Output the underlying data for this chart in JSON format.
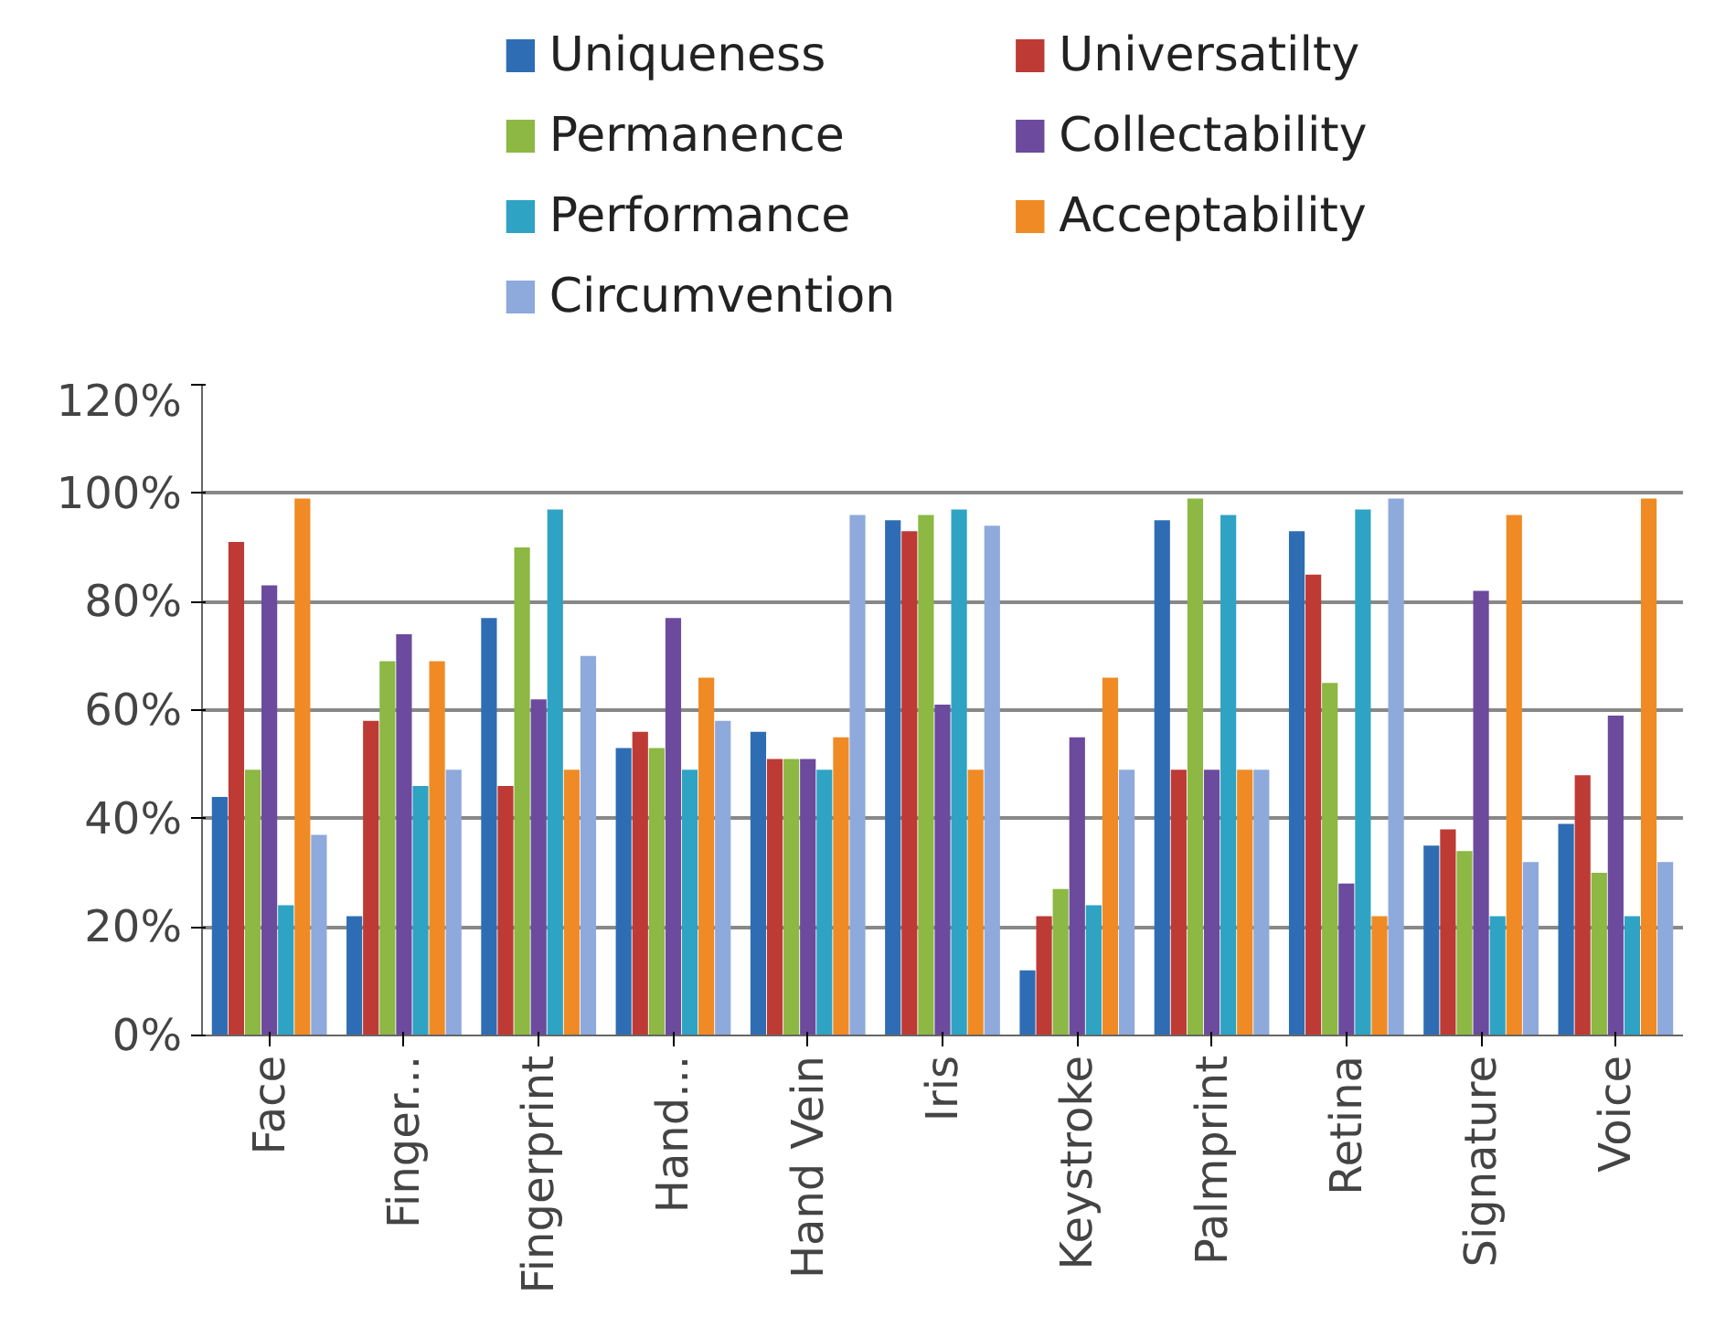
{
  "chart_data": {
    "type": "bar",
    "categories": [
      "Face",
      "Finger...",
      "Fingerprint",
      "Hand...",
      "Hand Vein",
      "Iris",
      "Keystroke",
      "Palmprint",
      "Retina",
      "Signature",
      "Voice"
    ],
    "series": [
      {
        "name": "Uniqueness",
        "color": "#2e6db4",
        "values": [
          44,
          22,
          77,
          53,
          56,
          95,
          12,
          95,
          93,
          35,
          39
        ]
      },
      {
        "name": "Universatilty",
        "color": "#be3a34",
        "values": [
          91,
          58,
          46,
          56,
          51,
          93,
          22,
          49,
          85,
          38,
          48
        ]
      },
      {
        "name": "Permanence",
        "color": "#8cb843",
        "values": [
          49,
          69,
          90,
          53,
          51,
          96,
          27,
          99,
          65,
          34,
          30
        ]
      },
      {
        "name": "Collectability",
        "color": "#6c4a9e",
        "values": [
          83,
          74,
          62,
          77,
          51,
          61,
          55,
          49,
          28,
          82,
          59
        ]
      },
      {
        "name": "Performance",
        "color": "#2ea3c3",
        "values": [
          24,
          46,
          97,
          49,
          49,
          97,
          24,
          96,
          97,
          22,
          22
        ]
      },
      {
        "name": "Acceptability",
        "color": "#f08a24",
        "values": [
          99,
          69,
          49,
          66,
          55,
          49,
          66,
          49,
          22,
          96,
          99
        ]
      },
      {
        "name": "Circumvention",
        "color": "#8ea9db",
        "values": [
          37,
          49,
          70,
          58,
          96,
          94,
          49,
          49,
          99,
          32,
          32
        ]
      }
    ],
    "ylim": [
      0,
      120
    ],
    "yticks": [
      {
        "value": 0,
        "label": "0%"
      },
      {
        "value": 20,
        "label": "20%"
      },
      {
        "value": 40,
        "label": "40%"
      },
      {
        "value": 60,
        "label": "60%"
      },
      {
        "value": 80,
        "label": "80%"
      },
      {
        "value": 100,
        "label": "100%"
      },
      {
        "value": 120,
        "label": "120%"
      }
    ],
    "grid": "y",
    "legend": "top"
  }
}
